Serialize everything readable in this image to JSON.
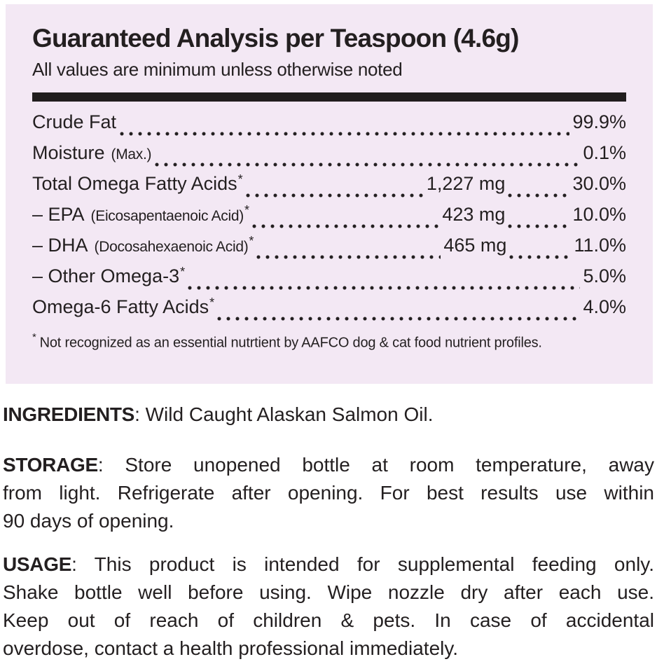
{
  "panel": {
    "title": "Guaranteed Analysis per Teaspoon (4.6g)",
    "subtitle": "All values are minimum unless otherwise noted",
    "rows": [
      {
        "label": "Crude Fat",
        "note": "",
        "star": "",
        "mg": "",
        "pct": "99.9%"
      },
      {
        "label": "Moisture",
        "note": "(Max.)",
        "star": "",
        "mg": "",
        "pct": "0.1%"
      },
      {
        "label": "Total Omega Fatty Acids",
        "note": "",
        "star": "*",
        "mg": "1,227 mg",
        "pct": "30.0%"
      },
      {
        "label": "– EPA",
        "note": "(Eicosapentaenoic Acid)",
        "star": "*",
        "mg": "423 mg",
        "pct": "10.0%"
      },
      {
        "label": "– DHA",
        "note": "(Docosahexaenoic Acid)",
        "star": "*",
        "mg": "465 mg",
        "pct": "11.0%"
      },
      {
        "label": "– Other Omega-3",
        "note": "",
        "star": "*",
        "mg": "",
        "pct": "5.0%"
      },
      {
        "label": "Omega-6 Fatty Acids",
        "note": "",
        "star": "*",
        "mg": "",
        "pct": "4.0%"
      }
    ],
    "footnote_star": "*",
    "footnote_text": "Not recognized as an essential nutrtient by AAFCO dog & cat food nutrient profiles."
  },
  "sections": {
    "ingredients": {
      "label": "INGREDIENTS",
      "colon": ": ",
      "text": "Wild Caught Alaskan Salmon Oil."
    },
    "storage": {
      "label": "STORAGE",
      "colon": ": ",
      "line1": "Store unopened bottle at room temperature, away",
      "line2": "from light. Refrigerate after opening. For best results use within",
      "line3": "90 days of opening."
    },
    "usage": {
      "label": "USAGE",
      "colon": ": ",
      "line1": "This product is intended for supplemental feeding only.",
      "line2": "Shake bottle well before using. Wipe nozzle dry after each use.",
      "line3": "Keep out of reach of children & pets. In case of accidental",
      "line4": "overdose, contact a health professional immediately."
    }
  },
  "colors": {
    "panel_background": "#f3e8f4",
    "text": "#231f20",
    "divider_bar": "#211d1e"
  }
}
